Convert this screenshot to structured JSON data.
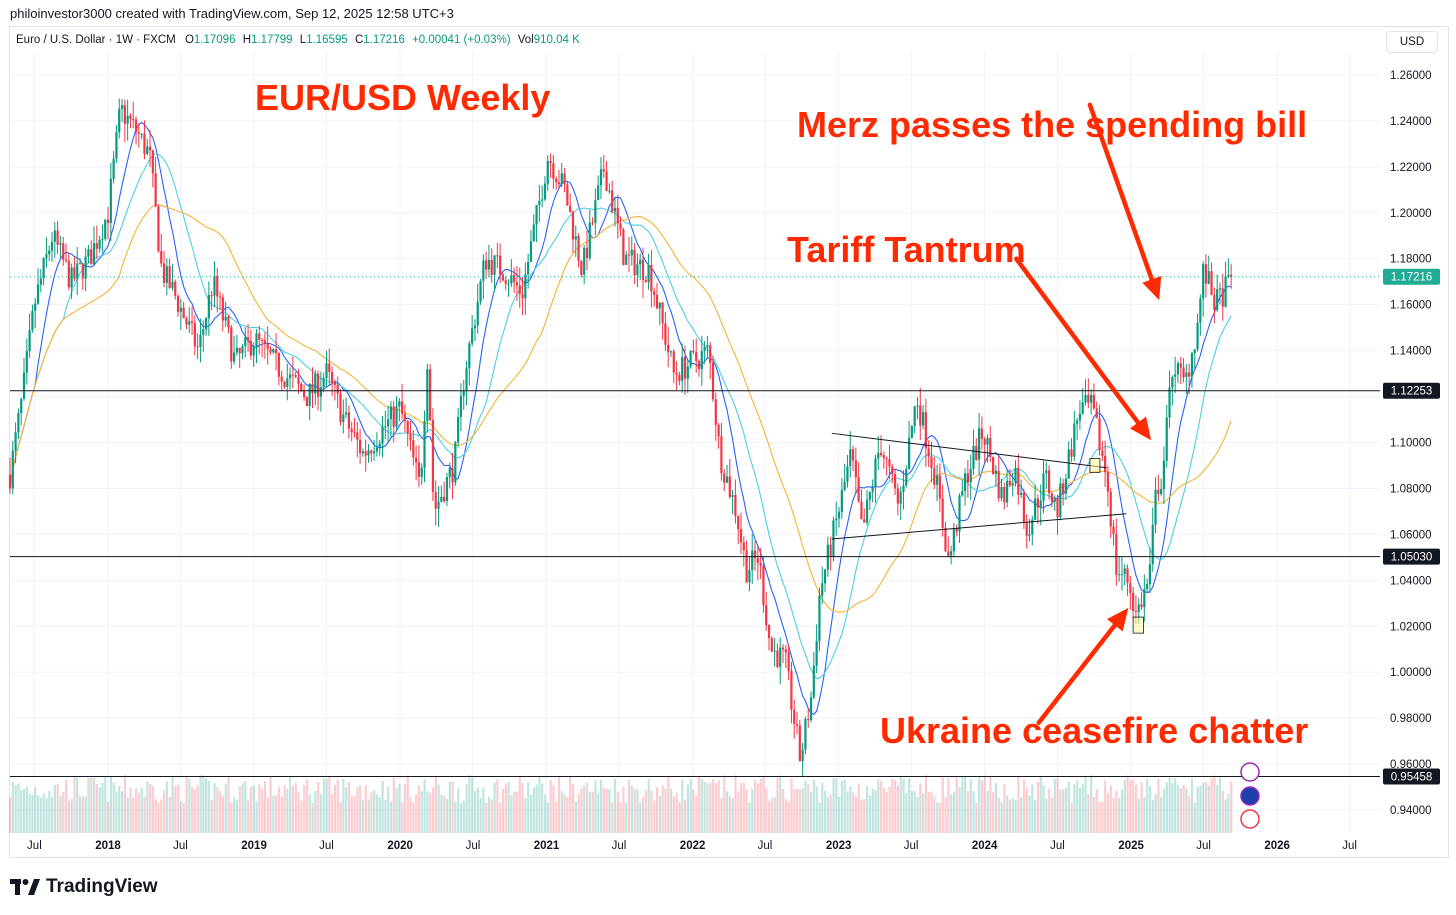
{
  "header": {
    "attribution": "philoinvestor3000 created with TradingView.com, Sep 12, 2025 12:58 UTC+3"
  },
  "legend": {
    "symbol": "Euro / U.S. Dollar · 1W · FXCM",
    "open_label": "O",
    "open": "1.17096",
    "high_label": "H",
    "high": "1.17799",
    "low_label": "L",
    "low": "1.16595",
    "close_label": "C",
    "close": "1.17216",
    "change": "+0.00041 (+0.03%)",
    "vol_label": "Vol",
    "vol": "910.04 K"
  },
  "currency_button": "USD",
  "brand": {
    "name": "TradingView"
  },
  "colors": {
    "up": "#089981",
    "down": "#f23645",
    "ma_fast": "#2962ff",
    "ma_mid": "#4dd0e1",
    "ma_slow": "#f5b335",
    "annotation": "#ff2a00",
    "last_price_tag": "#22ab94"
  },
  "axis_icons": [
    "lightning-icon",
    "eu-flag-icon",
    "us-flag-icon"
  ],
  "chart_data": {
    "type": "candlestick",
    "title": "EUR/USD Weekly",
    "y_range": [
      0.93,
      1.27
    ],
    "y_ticks": [
      "1.26000",
      "1.24000",
      "1.22000",
      "1.20000",
      "1.18000",
      "1.16000",
      "1.14000",
      "1.12000",
      "1.10000",
      "1.08000",
      "1.06000",
      "1.04000",
      "1.02000",
      "1.00000",
      "0.98000",
      "0.96000",
      "0.94000"
    ],
    "x_range": [
      "2017-05-01",
      "2026-09-15"
    ],
    "x_ticks": [
      {
        "date": "2017-07-01",
        "label": "Jul"
      },
      {
        "date": "2018-01-01",
        "label": "2018"
      },
      {
        "date": "2018-07-01",
        "label": "Jul"
      },
      {
        "date": "2019-01-01",
        "label": "2019"
      },
      {
        "date": "2019-07-01",
        "label": "Jul"
      },
      {
        "date": "2020-01-01",
        "label": "2020"
      },
      {
        "date": "2020-07-01",
        "label": "Jul"
      },
      {
        "date": "2021-01-01",
        "label": "2021"
      },
      {
        "date": "2021-07-01",
        "label": "Jul"
      },
      {
        "date": "2022-01-01",
        "label": "2022"
      },
      {
        "date": "2022-07-01",
        "label": "Jul"
      },
      {
        "date": "2023-01-01",
        "label": "2023"
      },
      {
        "date": "2023-07-01",
        "label": "Jul"
      },
      {
        "date": "2024-01-01",
        "label": "2024"
      },
      {
        "date": "2024-07-01",
        "label": "Jul"
      },
      {
        "date": "2025-01-01",
        "label": "2025"
      },
      {
        "date": "2025-07-01",
        "label": "Jul"
      },
      {
        "date": "2026-01-01",
        "label": "2026"
      },
      {
        "date": "2026-07-01",
        "label": "Jul"
      }
    ],
    "price_path": [
      [
        "2017-05-01",
        1.086
      ],
      [
        "2017-06-01",
        1.12
      ],
      [
        "2017-07-01",
        1.16
      ],
      [
        "2017-08-15",
        1.19
      ],
      [
        "2017-10-01",
        1.17
      ],
      [
        "2017-11-15",
        1.18
      ],
      [
        "2018-01-01",
        1.2
      ],
      [
        "2018-02-01",
        1.245
      ],
      [
        "2018-03-15",
        1.235
      ],
      [
        "2018-04-15",
        1.225
      ],
      [
        "2018-05-15",
        1.175
      ],
      [
        "2018-06-15",
        1.165
      ],
      [
        "2018-08-15",
        1.14
      ],
      [
        "2018-09-20",
        1.17
      ],
      [
        "2018-11-15",
        1.135
      ],
      [
        "2019-01-01",
        1.145
      ],
      [
        "2019-03-15",
        1.13
      ],
      [
        "2019-05-15",
        1.12
      ],
      [
        "2019-07-01",
        1.13
      ],
      [
        "2019-08-15",
        1.11
      ],
      [
        "2019-10-01",
        1.095
      ],
      [
        "2019-11-15",
        1.105
      ],
      [
        "2020-01-01",
        1.115
      ],
      [
        "2020-02-20",
        1.08
      ],
      [
        "2020-03-10",
        1.14
      ],
      [
        "2020-03-25",
        1.07
      ],
      [
        "2020-05-15",
        1.09
      ],
      [
        "2020-06-10",
        1.13
      ],
      [
        "2020-08-01",
        1.18
      ],
      [
        "2020-09-15",
        1.175
      ],
      [
        "2020-11-01",
        1.165
      ],
      [
        "2021-01-05",
        1.225
      ],
      [
        "2021-02-15",
        1.21
      ],
      [
        "2021-03-31",
        1.175
      ],
      [
        "2021-05-25",
        1.22
      ],
      [
        "2021-07-15",
        1.18
      ],
      [
        "2021-09-15",
        1.175
      ],
      [
        "2021-11-15",
        1.13
      ],
      [
        "2022-01-01",
        1.135
      ],
      [
        "2022-02-10",
        1.14
      ],
      [
        "2022-03-10",
        1.095
      ],
      [
        "2022-04-20",
        1.07
      ],
      [
        "2022-05-15",
        1.045
      ],
      [
        "2022-06-15",
        1.05
      ],
      [
        "2022-07-15",
        1.01
      ],
      [
        "2022-08-20",
        1.005
      ],
      [
        "2022-09-27",
        0.962
      ],
      [
        "2022-10-25",
        0.99
      ],
      [
        "2022-11-15",
        1.035
      ],
      [
        "2023-01-01",
        1.07
      ],
      [
        "2023-02-01",
        1.095
      ],
      [
        "2023-03-01",
        1.06
      ],
      [
        "2023-04-15",
        1.1
      ],
      [
        "2023-05-31",
        1.072
      ],
      [
        "2023-07-15",
        1.12
      ],
      [
        "2023-08-31",
        1.085
      ],
      [
        "2023-10-03",
        1.048
      ],
      [
        "2023-11-15",
        1.085
      ],
      [
        "2023-12-28",
        1.105
      ],
      [
        "2024-02-15",
        1.075
      ],
      [
        "2024-03-15",
        1.09
      ],
      [
        "2024-04-16",
        1.062
      ],
      [
        "2024-06-01",
        1.085
      ],
      [
        "2024-06-30",
        1.07
      ],
      [
        "2024-08-25",
        1.115
      ],
      [
        "2024-09-25",
        1.115
      ],
      [
        "2024-11-01",
        1.085
      ],
      [
        "2024-11-25",
        1.045
      ],
      [
        "2024-12-25",
        1.04
      ],
      [
        "2025-01-13",
        1.025
      ],
      [
        "2025-02-15",
        1.04
      ],
      [
        "2025-03-05",
        1.08
      ],
      [
        "2025-03-20",
        1.085
      ],
      [
        "2025-04-15",
        1.135
      ],
      [
        "2025-05-15",
        1.125
      ],
      [
        "2025-06-15",
        1.15
      ],
      [
        "2025-07-01",
        1.175
      ],
      [
        "2025-08-01",
        1.16
      ],
      [
        "2025-09-12",
        1.172
      ]
    ],
    "series": [
      {
        "name": "",
        "kind": "moving-average",
        "color": "#2962ff",
        "smoothing_weeks": 10
      },
      {
        "name": "",
        "kind": "moving-average",
        "color": "#4dd0e1",
        "smoothing_weeks": 20
      },
      {
        "name": "",
        "kind": "moving-average",
        "color": "#f5b335",
        "smoothing_weeks": 40
      }
    ],
    "horizontal_levels": [
      "1.12253",
      "1.05030",
      "0.95458"
    ],
    "last_price": "1.17216",
    "trendlines": [
      {
        "from": [
          "2022-12-15",
          1.104
        ],
        "to": [
          "2024-11-01",
          1.089
        ]
      },
      {
        "from": [
          "2022-12-15",
          1.058
        ],
        "to": [
          "2024-12-20",
          1.069
        ]
      }
    ],
    "highlight_boxes": [
      {
        "from": [
          "2024-09-20",
          1.087
        ],
        "to": [
          "2024-10-15",
          1.093
        ]
      },
      {
        "from": [
          "2025-01-06",
          1.017
        ],
        "to": [
          "2025-02-01",
          1.024
        ]
      }
    ],
    "annotations": [
      {
        "text": "EUR/USD Weekly"
      },
      {
        "text": "Merz passes the spending bill",
        "arrow_from": [
          "2024-09-20",
          1.247
        ],
        "arrow_to": [
          "2025-03-12",
          1.162
        ]
      },
      {
        "text": "Tariff Tantrum",
        "arrow_from": [
          "2024-03-20",
          1.18
        ],
        "arrow_to": [
          "2025-02-20",
          1.101
        ]
      },
      {
        "text": "Ukraine ceasefire chatter",
        "arrow_from": [
          "2024-05-15",
          0.978
        ],
        "arrow_to": [
          "2024-12-25",
          1.028
        ]
      }
    ]
  }
}
